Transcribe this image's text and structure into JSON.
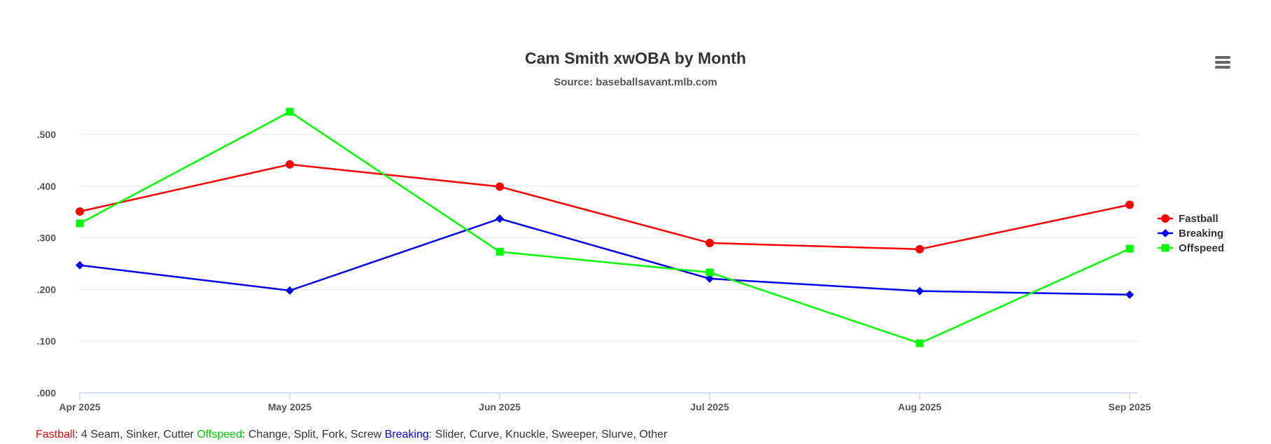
{
  "chart_data": {
    "type": "line",
    "title": "Cam Smith xwOBA by Month",
    "subtitle": "Source: baseballsavant.mlb.com",
    "categories": [
      "Apr 2025",
      "May 2025",
      "Jun 2025",
      "Jul 2025",
      "Aug 2025",
      "Sep 2025"
    ],
    "yticks": [
      ".000",
      ".100",
      ".200",
      ".300",
      ".400",
      ".500"
    ],
    "ylim": [
      0,
      0.5
    ],
    "grid": true,
    "legend_position": "right",
    "series": [
      {
        "name": "Fastball",
        "color": "#ff0000",
        "marker": "circle",
        "values": [
          0.351,
          0.442,
          0.399,
          0.29,
          0.278,
          0.364
        ]
      },
      {
        "name": "Breaking",
        "color": "#0000ee",
        "marker": "diamond",
        "values": [
          0.247,
          0.198,
          0.337,
          0.221,
          0.197,
          0.19
        ]
      },
      {
        "name": "Offspeed",
        "color": "#00ff00",
        "marker": "square",
        "values": [
          0.328,
          0.544,
          0.273,
          0.233,
          0.096,
          0.279
        ]
      }
    ]
  },
  "menu": {
    "icon": "hamburger-menu-icon"
  },
  "footnote": {
    "fastball_label": "Fastball",
    "fastball_text": ": 4 Seam, Sinker, Cutter ",
    "offspeed_label": "Offspeed",
    "offspeed_text": ": Change, Split, Fork, Screw ",
    "breaking_label": "Breaking",
    "breaking_text": ": Slider, Curve, Knuckle, Sweeper, Slurve, Other",
    "colors": {
      "fastball": "#ff0000",
      "offspeed": "#00cc00",
      "breaking": "#0000ee"
    }
  }
}
